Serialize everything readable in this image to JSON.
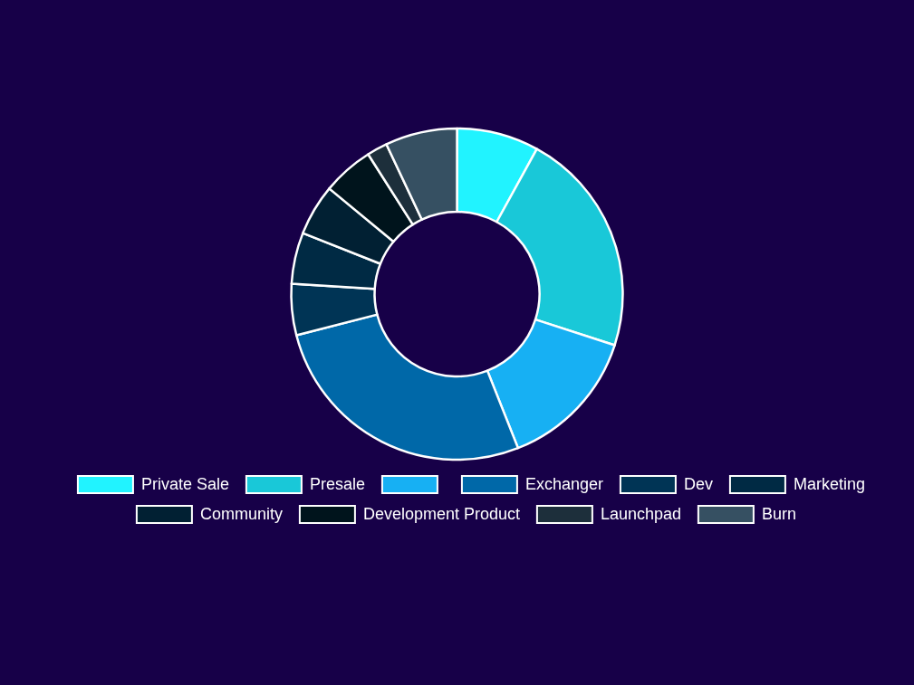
{
  "chart_data": {
    "type": "donut",
    "categories": [
      "Private Sale",
      "Presale",
      null,
      "Exchanger",
      "Dev",
      "Marketing",
      "Community",
      "Development Product",
      "Launchpad",
      "Burn"
    ],
    "values": [
      8,
      22,
      14,
      27,
      5,
      5,
      5,
      5,
      2,
      7
    ],
    "colors": [
      "#21f3ff",
      "#19c8d8",
      "#17b0f3",
      "#0068a8",
      "#003455",
      "#002a44",
      "#012033",
      "#00141c",
      "#1d2f3b",
      "#365062"
    ],
    "legend": "bottom"
  }
}
